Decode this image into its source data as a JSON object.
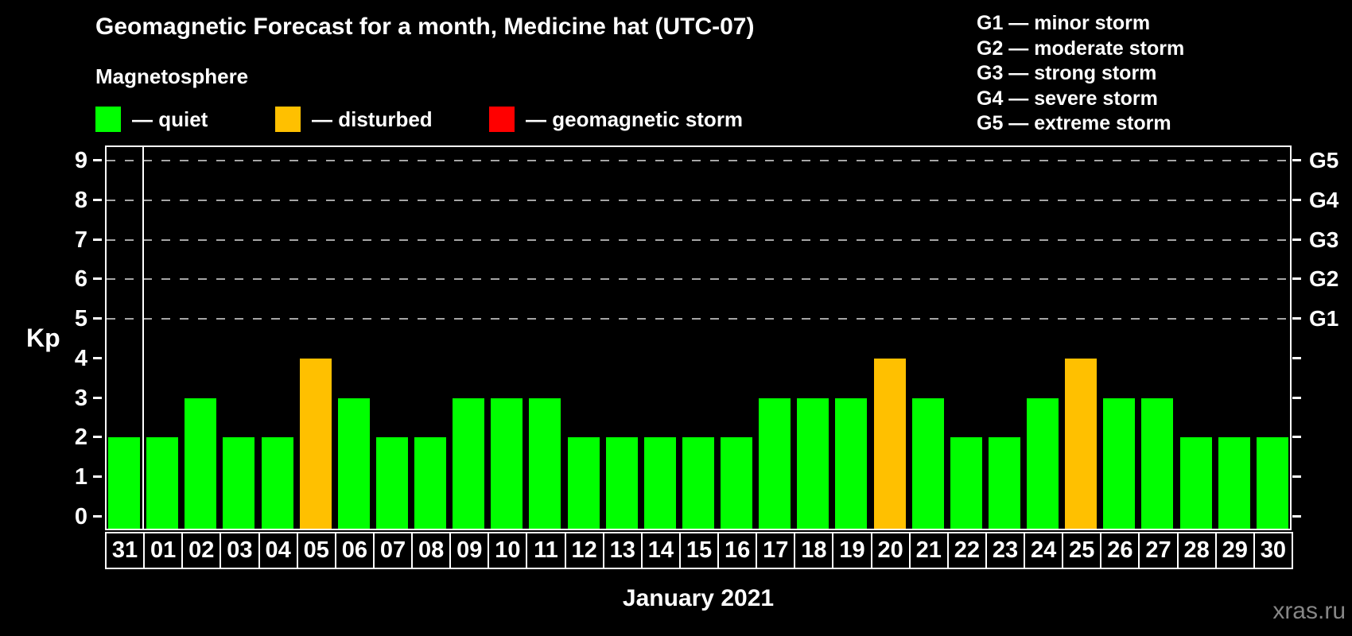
{
  "title": "Geomagnetic Forecast for a month, Medicine hat (UTC-07)",
  "magnetosphere": {
    "heading": "Magnetosphere",
    "items": [
      {
        "name": "quiet",
        "label": "— quiet",
        "color": "#00ff00"
      },
      {
        "name": "disturbed",
        "label": "— disturbed",
        "color": "#ffc000"
      },
      {
        "name": "storm",
        "label": "— geomagnetic storm",
        "color": "#ff0000"
      }
    ]
  },
  "storm_scale": {
    "lines": [
      "G1 — minor storm",
      "G2 — moderate storm",
      "G3 — strong storm",
      "G4 — severe storm",
      "G5 — extreme storm"
    ]
  },
  "chart_data": {
    "type": "bar",
    "title": "Geomagnetic Forecast for a month, Medicine hat (UTC-07)",
    "xlabel": "January 2021",
    "ylabel": "Kp",
    "ylim": [
      0,
      9
    ],
    "yticks": [
      0,
      1,
      2,
      3,
      4,
      5,
      6,
      7,
      8,
      9
    ],
    "grid": "dashed horizontal at Kp 5-9",
    "grid_levels_kp": [
      5,
      6,
      7,
      8,
      9
    ],
    "right_axis": [
      {
        "label": "G5",
        "kp": 9
      },
      {
        "label": "G4",
        "kp": 8
      },
      {
        "label": "G3",
        "kp": 7
      },
      {
        "label": "G2",
        "kp": 6
      },
      {
        "label": "G1",
        "kp": 5
      }
    ],
    "categories": [
      "31",
      "01",
      "02",
      "03",
      "04",
      "05",
      "06",
      "07",
      "08",
      "09",
      "10",
      "11",
      "12",
      "13",
      "14",
      "15",
      "16",
      "17",
      "18",
      "19",
      "20",
      "21",
      "22",
      "23",
      "24",
      "25",
      "26",
      "27",
      "28",
      "29",
      "30"
    ],
    "values": [
      2,
      2,
      3,
      2,
      2,
      4,
      3,
      2,
      2,
      3,
      3,
      3,
      2,
      2,
      2,
      2,
      2,
      3,
      3,
      3,
      4,
      3,
      2,
      2,
      3,
      4,
      3,
      3,
      2,
      2,
      2
    ],
    "statuses": [
      "quiet",
      "quiet",
      "quiet",
      "quiet",
      "quiet",
      "disturbed",
      "quiet",
      "quiet",
      "quiet",
      "quiet",
      "quiet",
      "quiet",
      "quiet",
      "quiet",
      "quiet",
      "quiet",
      "quiet",
      "quiet",
      "quiet",
      "quiet",
      "disturbed",
      "quiet",
      "quiet",
      "quiet",
      "quiet",
      "disturbed",
      "quiet",
      "quiet",
      "quiet",
      "quiet",
      "quiet"
    ],
    "status_colors": {
      "quiet": "#00ff00",
      "disturbed": "#ffc000",
      "storm": "#ff0000"
    },
    "legend_position": "top-left"
  },
  "footer": {
    "xaxis_title": "January 2021",
    "watermark": "xras.ru"
  }
}
